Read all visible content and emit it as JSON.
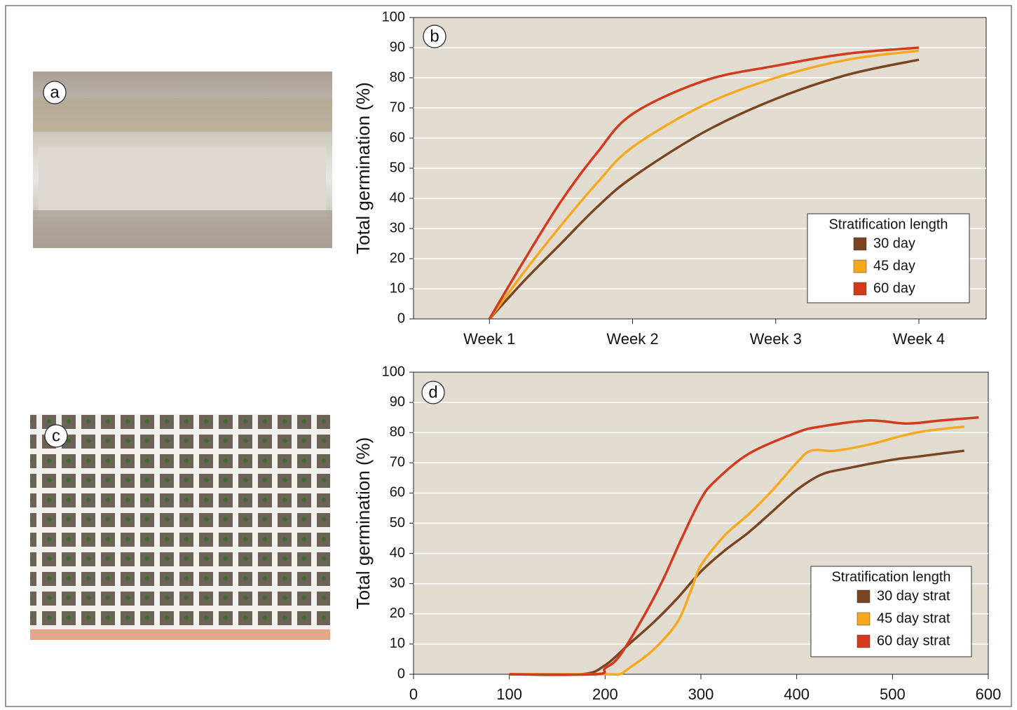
{
  "photos": [
    {
      "label": "a"
    },
    {
      "label": "c"
    }
  ],
  "chart_data": [
    {
      "type": "line",
      "annotation": "b",
      "ylabel": "Total germination (%)",
      "xlim": [
        0.47,
        4.47
      ],
      "xticks": [
        {
          "value": 1,
          "label": "Week 1"
        },
        {
          "value": 2,
          "label": "Week 2"
        },
        {
          "value": 3,
          "label": "Week 3"
        },
        {
          "value": 4,
          "label": "Week 4"
        }
      ],
      "ylim": [
        0,
        100
      ],
      "yticks": [
        0,
        10,
        20,
        30,
        40,
        50,
        60,
        70,
        80,
        90,
        100
      ],
      "grid": true,
      "legend_title": "Stratification length",
      "legend": "lower right",
      "series": [
        {
          "name": "30 day",
          "color": "#7a4622",
          "x": [
            1,
            1.25,
            1.5,
            1.75,
            2,
            2.5,
            3,
            3.5,
            4
          ],
          "values": [
            0,
            13,
            25,
            37,
            47,
            62,
            73,
            81,
            86
          ]
        },
        {
          "name": "45 day",
          "color": "#f6a91f",
          "x": [
            1,
            1.25,
            1.5,
            1.75,
            2,
            2.5,
            3,
            3.5,
            4
          ],
          "values": [
            0,
            16,
            31,
            45,
            57,
            71,
            80,
            86,
            89
          ]
        },
        {
          "name": "60 day",
          "color": "#d33a1d",
          "x": [
            1,
            1.25,
            1.5,
            1.75,
            2,
            2.5,
            3,
            3.5,
            4
          ],
          "values": [
            0,
            20,
            39,
            55,
            68,
            79,
            84,
            88,
            90
          ]
        }
      ]
    },
    {
      "type": "line",
      "annotation": "d",
      "ylabel": "Total germination (%)",
      "xlim": [
        0,
        600
      ],
      "xticks": [
        0,
        100,
        200,
        300,
        400,
        500,
        600
      ],
      "ylim": [
        0,
        100
      ],
      "yticks": [
        0,
        10,
        20,
        30,
        40,
        50,
        60,
        70,
        80,
        90,
        100
      ],
      "grid": true,
      "legend_title": "Stratification length",
      "legend": "lower right",
      "series": [
        {
          "name": "30 day strat",
          "color": "#7a4622",
          "x": [
            100,
            175,
            200,
            225,
            250,
            275,
            300,
            325,
            350,
            375,
            400,
            425,
            450,
            500,
            525,
            575
          ],
          "values": [
            0,
            0,
            3,
            10,
            17,
            25,
            34,
            41,
            47,
            54,
            61,
            66,
            68,
            71,
            72,
            74
          ]
        },
        {
          "name": "45 day strat",
          "color": "#f6a91f",
          "x": [
            100,
            200,
            215,
            225,
            250,
            275,
            290,
            300,
            325,
            350,
            375,
            400,
            415,
            440,
            475,
            525,
            575
          ],
          "values": [
            0,
            0,
            0,
            2,
            8,
            17,
            28,
            36,
            46,
            53,
            61,
            70,
            74,
            74,
            76,
            80,
            82
          ]
        },
        {
          "name": "60 day strat",
          "color": "#d33a1d",
          "x": [
            100,
            190,
            200,
            215,
            240,
            260,
            280,
            300,
            315,
            350,
            400,
            425,
            475,
            515,
            550,
            590
          ],
          "values": [
            0,
            0,
            2,
            6,
            19,
            31,
            45,
            58,
            64,
            73,
            80,
            82,
            84,
            83,
            84,
            85
          ]
        }
      ]
    }
  ]
}
